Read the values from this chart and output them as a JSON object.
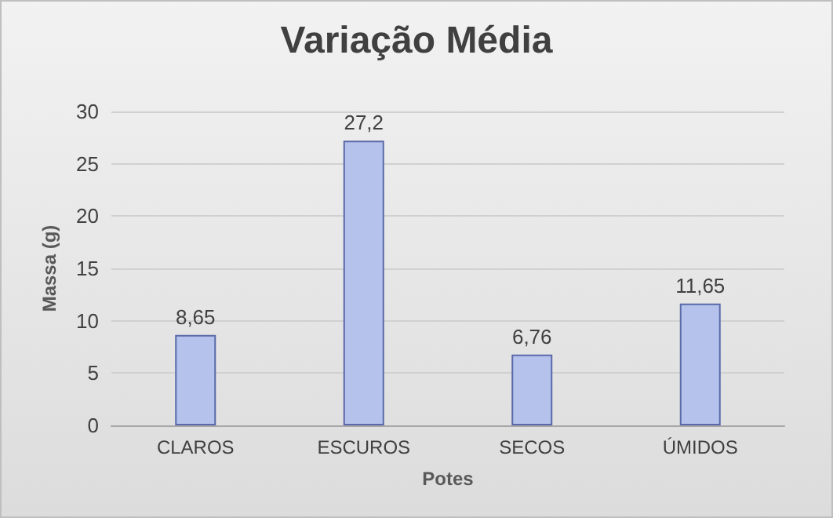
{
  "chart_data": {
    "type": "bar",
    "title": "Variação Média",
    "xlabel": "Potes",
    "ylabel": "Massa (g)",
    "categories": [
      "CLAROS",
      "ESCUROS",
      "SECOS",
      "ÚMIDOS"
    ],
    "values": [
      8.65,
      27.2,
      6.76,
      11.65
    ],
    "value_labels": [
      "8,65",
      "27,2",
      "6,76",
      "11,65"
    ],
    "color": "#b4c2ec",
    "ylim": [
      0,
      30
    ],
    "yticks": [
      0,
      5,
      10,
      15,
      20,
      25,
      30
    ],
    "grid": "y"
  }
}
